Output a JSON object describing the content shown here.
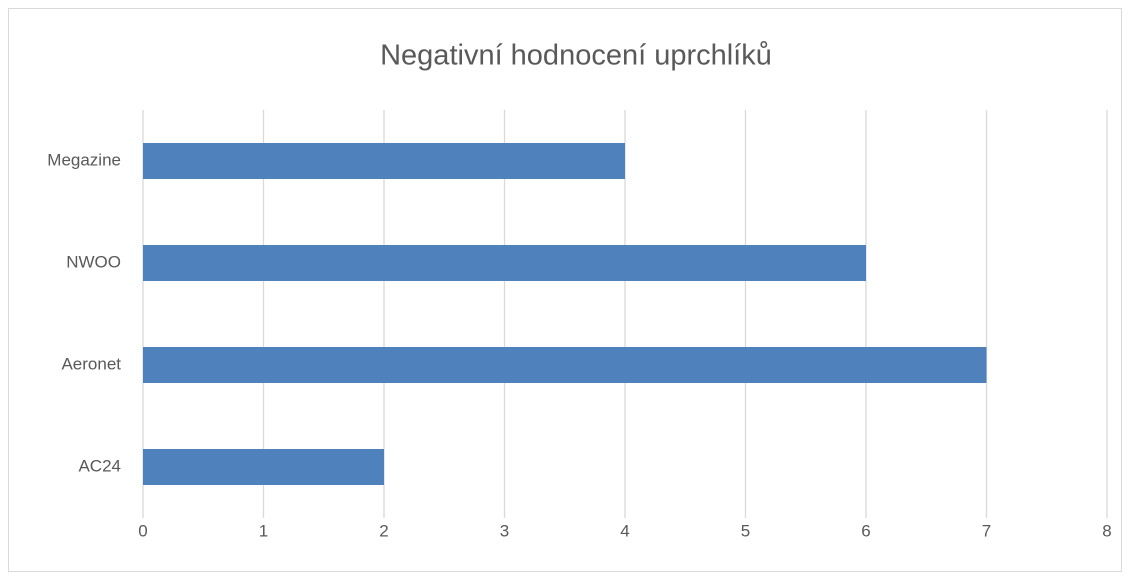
{
  "chart_data": {
    "type": "bar",
    "orientation": "horizontal",
    "title": "Negativní hodnocení uprchlíků",
    "categories": [
      "Megazine",
      "NWOO",
      "Aeronet",
      "AC24"
    ],
    "values": [
      4,
      6,
      7,
      2
    ],
    "color": "#4f81bd",
    "xlim": [
      0,
      8
    ],
    "xticks": [
      0,
      1,
      2,
      3,
      4,
      5,
      6,
      7,
      8
    ],
    "grid": true
  }
}
